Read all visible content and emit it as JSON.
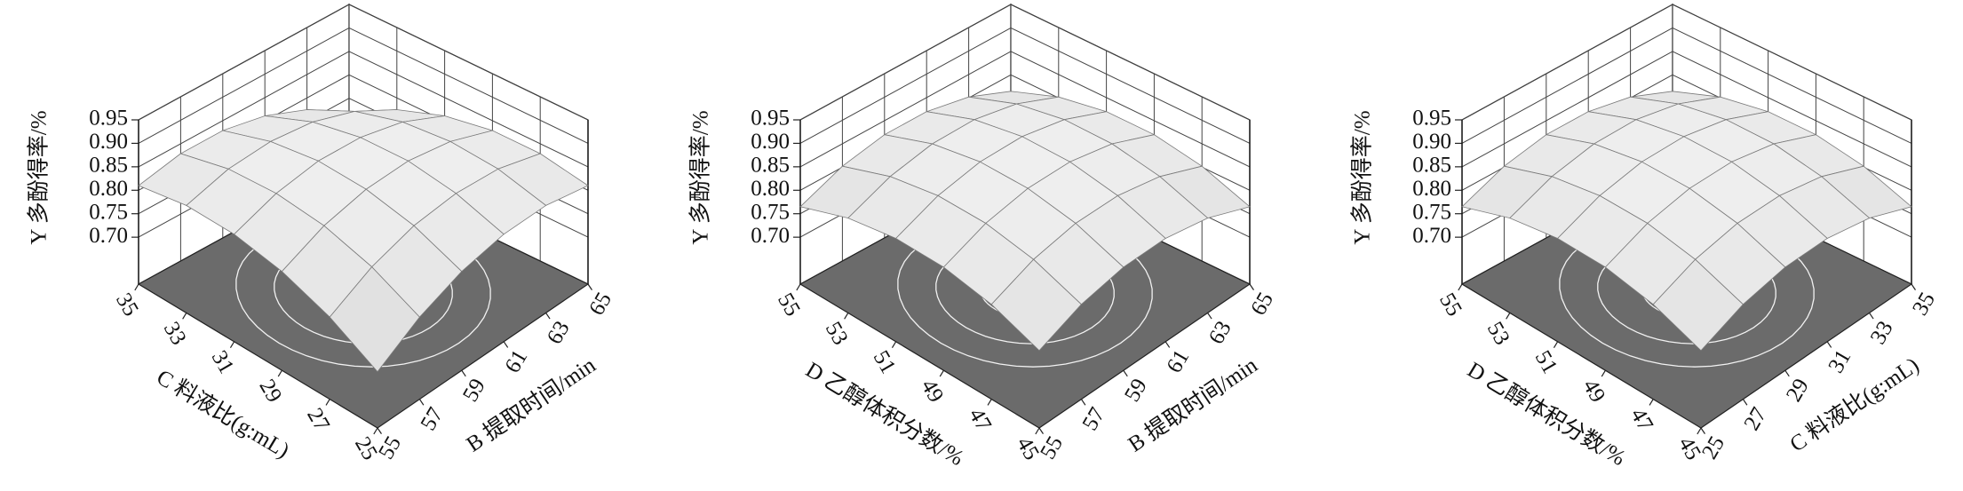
{
  "chart_data": [
    {
      "type": "surface",
      "x_label": "B 提取时间/min",
      "y_label": "C 料液比(g:mL)",
      "z_label": "Y 多酚得率/%",
      "x": [
        55,
        57,
        59,
        61,
        63,
        65
      ],
      "y": [
        25,
        27,
        29,
        31,
        33,
        35
      ],
      "z": [
        [
          0.72,
          0.775,
          0.811,
          0.829,
          0.829,
          0.81
        ],
        [
          0.775,
          0.823,
          0.852,
          0.862,
          0.855,
          0.829
        ],
        [
          0.811,
          0.852,
          0.873,
          0.877,
          0.862,
          0.829
        ],
        [
          0.829,
          0.862,
          0.877,
          0.873,
          0.852,
          0.811
        ],
        [
          0.829,
          0.855,
          0.862,
          0.852,
          0.823,
          0.775
        ],
        [
          0.81,
          0.829,
          0.829,
          0.811,
          0.775,
          0.72
        ]
      ],
      "xlim": [
        55,
        65
      ],
      "ylim": [
        25,
        35
      ],
      "zlim": [
        0.6,
        0.95
      ],
      "xticks": [
        55,
        57,
        59,
        61,
        63,
        65
      ],
      "yticks": [
        25,
        27,
        29,
        31,
        33,
        35
      ],
      "zticks": [
        {
          "value": 0.7,
          "label": "0.70"
        },
        {
          "value": 0.75,
          "label": "0.75"
        },
        {
          "value": 0.8,
          "label": "0.80"
        },
        {
          "value": 0.85,
          "label": "0.85"
        },
        {
          "value": 0.9,
          "label": "0.90"
        },
        {
          "value": 0.95,
          "label": "0.95"
        }
      ]
    },
    {
      "type": "surface",
      "x_label": "B 提取时间/min",
      "y_label": "D 乙醇体积分数/%",
      "z_label": "Y 多酚得率/%",
      "x": [
        55,
        57,
        59,
        61,
        63,
        65
      ],
      "y": [
        45,
        47,
        49,
        51,
        53,
        55
      ],
      "z": [
        [
          0.765,
          0.802,
          0.82,
          0.82,
          0.802,
          0.765
        ],
        [
          0.802,
          0.839,
          0.857,
          0.857,
          0.839,
          0.802
        ],
        [
          0.82,
          0.857,
          0.875,
          0.875,
          0.857,
          0.82
        ],
        [
          0.82,
          0.857,
          0.875,
          0.875,
          0.857,
          0.82
        ],
        [
          0.802,
          0.839,
          0.857,
          0.857,
          0.839,
          0.802
        ],
        [
          0.765,
          0.802,
          0.82,
          0.82,
          0.802,
          0.765
        ]
      ],
      "xlim": [
        55,
        65
      ],
      "ylim": [
        45,
        55
      ],
      "zlim": [
        0.6,
        0.95
      ],
      "xticks": [
        55,
        57,
        59,
        61,
        63,
        65
      ],
      "yticks": [
        45,
        47,
        49,
        51,
        53,
        55
      ],
      "zticks": [
        {
          "value": 0.7,
          "label": "0.70"
        },
        {
          "value": 0.75,
          "label": "0.75"
        },
        {
          "value": 0.8,
          "label": "0.80"
        },
        {
          "value": 0.85,
          "label": "0.85"
        },
        {
          "value": 0.9,
          "label": "0.90"
        },
        {
          "value": 0.95,
          "label": "0.95"
        }
      ]
    },
    {
      "type": "surface",
      "x_label": "C 料液比(g:mL)",
      "y_label": "D 乙醇体积分数/%",
      "z_label": "Y 多酚得率/%",
      "x": [
        25,
        27,
        29,
        31,
        33,
        35
      ],
      "y": [
        45,
        47,
        49,
        51,
        53,
        55
      ],
      "z": [
        [
          0.765,
          0.802,
          0.82,
          0.82,
          0.802,
          0.765
        ],
        [
          0.802,
          0.839,
          0.857,
          0.857,
          0.839,
          0.802
        ],
        [
          0.82,
          0.857,
          0.875,
          0.875,
          0.857,
          0.82
        ],
        [
          0.82,
          0.857,
          0.875,
          0.875,
          0.857,
          0.82
        ],
        [
          0.802,
          0.839,
          0.857,
          0.857,
          0.839,
          0.802
        ],
        [
          0.765,
          0.802,
          0.82,
          0.82,
          0.802,
          0.765
        ]
      ],
      "xlim": [
        25,
        35
      ],
      "ylim": [
        45,
        55
      ],
      "zlim": [
        0.6,
        0.95
      ],
      "xticks": [
        25,
        27,
        29,
        31,
        33,
        35
      ],
      "yticks": [
        45,
        47,
        49,
        51,
        53,
        55
      ],
      "zticks": [
        {
          "value": 0.7,
          "label": "0.70"
        },
        {
          "value": 0.75,
          "label": "0.75"
        },
        {
          "value": 0.8,
          "label": "0.80"
        },
        {
          "value": 0.85,
          "label": "0.85"
        },
        {
          "value": 0.9,
          "label": "0.90"
        },
        {
          "value": 0.95,
          "label": "0.95"
        }
      ]
    }
  ]
}
